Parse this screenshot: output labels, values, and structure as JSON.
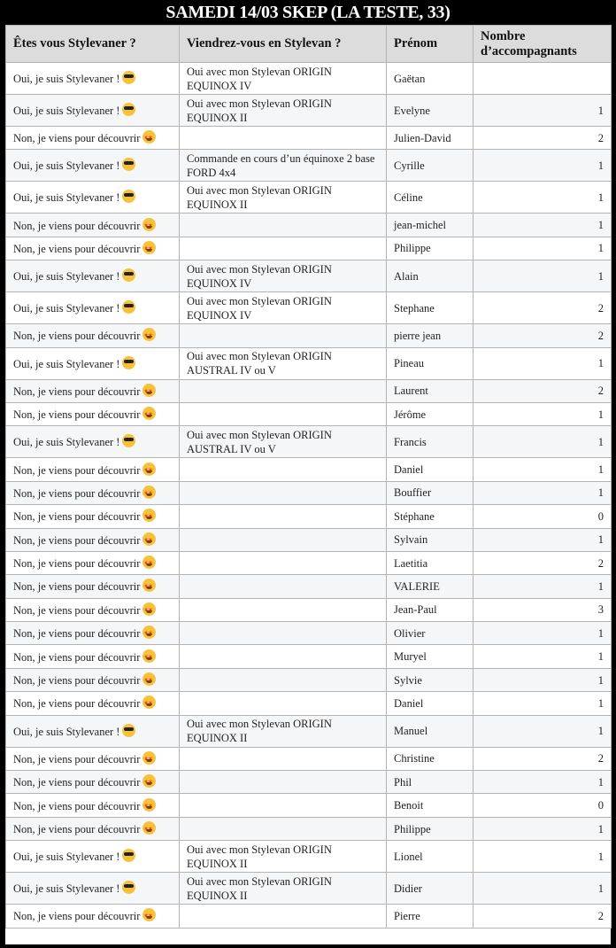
{
  "title": "SAMEDI 14/03 SKEP (LA TESTE, 33)",
  "headers": [
    "Êtes vous Stylevaner ?",
    "Viendrez-vous en Stylevan ?",
    "Prénom",
    "Nombre d’accompagnants"
  ],
  "answers": {
    "oui": {
      "text": "Oui, je suis Stylevaner !",
      "emoji": "😎",
      "icon": "smiling-face-with-sunglasses-icon"
    },
    "non": {
      "text": "Non, je viens pour découvrir",
      "emoji": "🤩",
      "icon": "star-struck-icon"
    }
  },
  "rows": [
    {
      "stylevaner": "oui",
      "van": "Oui avec mon Stylevan ORIGIN EQUINOX IV",
      "prenom": "Gaëtan",
      "nombre": ""
    },
    {
      "stylevaner": "oui",
      "van": "Oui avec mon Stylevan ORIGIN EQUINOX II",
      "prenom": "Evelyne",
      "nombre": "1"
    },
    {
      "stylevaner": "non",
      "van": "",
      "prenom": "Julien-David",
      "nombre": "2"
    },
    {
      "stylevaner": "oui",
      "van": "Commande en cours d’un équinoxe 2 base FORD 4x4",
      "prenom": "Cyrille",
      "nombre": "1"
    },
    {
      "stylevaner": "oui",
      "van": "Oui avec mon Stylevan ORIGIN EQUINOX II",
      "prenom": "Céline",
      "nombre": "1"
    },
    {
      "stylevaner": "non",
      "van": "",
      "prenom": "jean-michel",
      "nombre": "1"
    },
    {
      "stylevaner": "non",
      "van": "",
      "prenom": "Philippe",
      "nombre": "1"
    },
    {
      "stylevaner": "oui",
      "van": "Oui avec mon Stylevan ORIGIN EQUINOX IV",
      "prenom": "Alain",
      "nombre": "1"
    },
    {
      "stylevaner": "oui",
      "van": "Oui avec mon Stylevan ORIGIN EQUINOX IV",
      "prenom": "Stephane",
      "nombre": "2"
    },
    {
      "stylevaner": "non",
      "van": "",
      "prenom": "pierre jean",
      "nombre": "2"
    },
    {
      "stylevaner": "oui",
      "van": "Oui avec mon Stylevan ORIGIN AUSTRAL IV ou V",
      "prenom": "Pineau",
      "nombre": "1"
    },
    {
      "stylevaner": "non",
      "van": "",
      "prenom": "Laurent",
      "nombre": "2"
    },
    {
      "stylevaner": "non",
      "van": "",
      "prenom": "Jérôme",
      "nombre": "1"
    },
    {
      "stylevaner": "oui",
      "van": "Oui avec mon Stylevan ORIGIN AUSTRAL IV ou V",
      "prenom": "Francis",
      "nombre": "1"
    },
    {
      "stylevaner": "non",
      "van": "",
      "prenom": "Daniel",
      "nombre": "1"
    },
    {
      "stylevaner": "non",
      "van": "",
      "prenom": "Bouffier",
      "nombre": "1"
    },
    {
      "stylevaner": "non",
      "van": "",
      "prenom": "Stéphane",
      "nombre": "0"
    },
    {
      "stylevaner": "non",
      "van": "",
      "prenom": "Sylvain",
      "nombre": "1"
    },
    {
      "stylevaner": "non",
      "van": "",
      "prenom": "Laetitia",
      "nombre": "2"
    },
    {
      "stylevaner": "non",
      "van": "",
      "prenom": "VALERIE",
      "nombre": "1"
    },
    {
      "stylevaner": "non",
      "van": "",
      "prenom": "Jean-Paul",
      "nombre": "3"
    },
    {
      "stylevaner": "non",
      "van": "",
      "prenom": "Olivier",
      "nombre": "1"
    },
    {
      "stylevaner": "non",
      "van": "",
      "prenom": "Muryel",
      "nombre": "1"
    },
    {
      "stylevaner": "non",
      "van": "",
      "prenom": "Sylvie",
      "nombre": "1"
    },
    {
      "stylevaner": "non",
      "van": "",
      "prenom": "Daniel",
      "nombre": "1"
    },
    {
      "stylevaner": "oui",
      "van": "Oui avec mon Stylevan ORIGIN EQUINOX II",
      "prenom": "Manuel",
      "nombre": "1"
    },
    {
      "stylevaner": "non",
      "van": "",
      "prenom": "Christine",
      "nombre": "2"
    },
    {
      "stylevaner": "non",
      "van": "",
      "prenom": "Phil",
      "nombre": "1"
    },
    {
      "stylevaner": "non",
      "van": "",
      "prenom": "Benoit",
      "nombre": "0"
    },
    {
      "stylevaner": "non",
      "van": "",
      "prenom": "Philippe",
      "nombre": "1"
    },
    {
      "stylevaner": "oui",
      "van": "Oui avec mon Stylevan ORIGIN EQUINOX II",
      "prenom": "Lionel",
      "nombre": "1"
    },
    {
      "stylevaner": "oui",
      "van": "Oui avec mon Stylevan ORIGIN EQUINOX II",
      "prenom": "Didier",
      "nombre": "1"
    },
    {
      "stylevaner": "non",
      "van": "",
      "prenom": "Pierre",
      "nombre": "2"
    }
  ]
}
